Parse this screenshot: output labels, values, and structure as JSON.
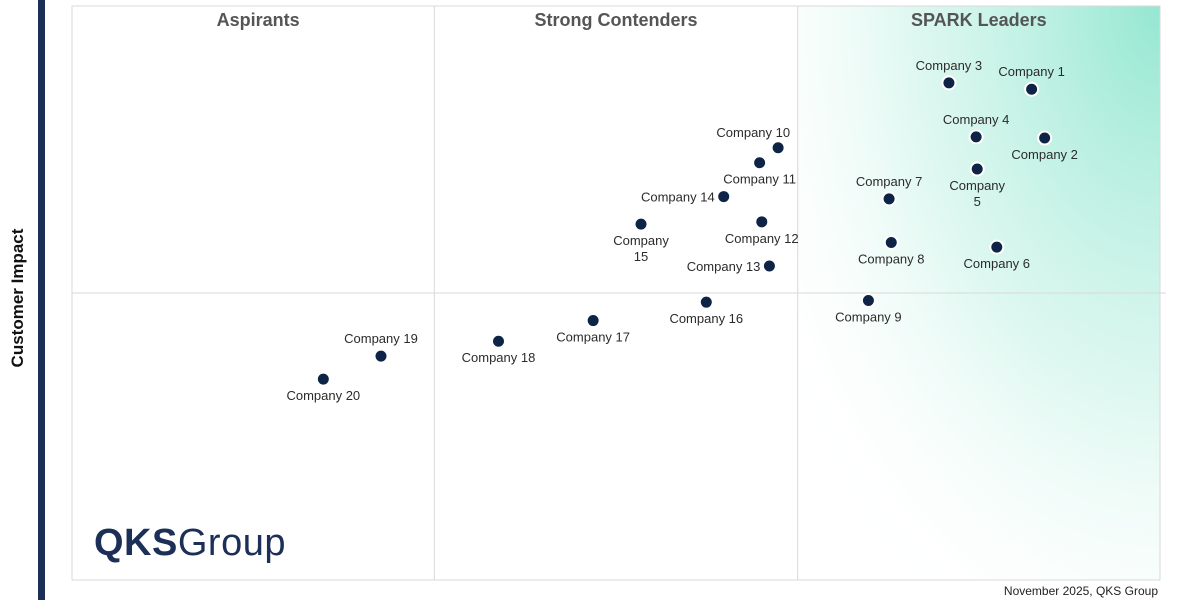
{
  "y_axis_label": "Customer Impact",
  "quadrant_titles": [
    "Aspirants",
    "Strong Contenders",
    "SPARK Leaders"
  ],
  "logo": {
    "bold": "QKS",
    "light": "Group"
  },
  "footer": "November 2025, QKS Group",
  "colors": {
    "point": "#0d2446",
    "leader_gradient": "#8fe6cf",
    "frame": "#1b2f57",
    "grid": "#d9d9d9"
  },
  "chart_data": {
    "type": "scatter",
    "ylabel": "Customer Impact",
    "xlim": [
      0,
      100
    ],
    "ylim": [
      0,
      100
    ],
    "x_dividers": [
      33.3,
      66.7
    ],
    "y_divider": 50,
    "points": [
      {
        "name": "Company 1",
        "x": 88.2,
        "y": 85.5,
        "label_pos": "above"
      },
      {
        "name": "Company 2",
        "x": 89.4,
        "y": 77.0,
        "label_pos": "below"
      },
      {
        "name": "Company 3",
        "x": 80.6,
        "y": 86.6,
        "label_pos": "above"
      },
      {
        "name": "Company 4",
        "x": 83.1,
        "y": 77.2,
        "label_pos": "above"
      },
      {
        "name": "Company 5",
        "x": 83.2,
        "y": 71.6,
        "label_pos": "below2",
        "label_lines": [
          "Company",
          "5"
        ]
      },
      {
        "name": "Company 6",
        "x": 85.0,
        "y": 58.0,
        "label_pos": "below"
      },
      {
        "name": "Company 7",
        "x": 75.1,
        "y": 66.4,
        "label_pos": "above"
      },
      {
        "name": "Company 8",
        "x": 75.3,
        "y": 58.8,
        "label_pos": "below"
      },
      {
        "name": "Company 9",
        "x": 73.2,
        "y": 48.7,
        "label_pos": "below"
      },
      {
        "name": "Company 10",
        "x": 64.9,
        "y": 75.3,
        "label_pos": "above-left"
      },
      {
        "name": "Company 11",
        "x": 63.2,
        "y": 72.7,
        "label_pos": "below"
      },
      {
        "name": "Company 12",
        "x": 63.4,
        "y": 62.4,
        "label_pos": "below"
      },
      {
        "name": "Company 13",
        "x": 64.1,
        "y": 54.7,
        "label_pos": "left"
      },
      {
        "name": "Company 14",
        "x": 59.9,
        "y": 66.8,
        "label_pos": "left"
      },
      {
        "name": "Company 15",
        "x": 52.3,
        "y": 62.0,
        "label_pos": "below2",
        "label_lines": [
          "Company",
          "15"
        ]
      },
      {
        "name": "Company 16",
        "x": 58.3,
        "y": 48.4,
        "label_pos": "below"
      },
      {
        "name": "Company 17",
        "x": 47.9,
        "y": 45.2,
        "label_pos": "below"
      },
      {
        "name": "Company 18",
        "x": 39.2,
        "y": 41.6,
        "label_pos": "below"
      },
      {
        "name": "Company 19",
        "x": 28.4,
        "y": 39.0,
        "label_pos": "above"
      },
      {
        "name": "Company 20",
        "x": 23.1,
        "y": 35.0,
        "label_pos": "below"
      }
    ]
  }
}
